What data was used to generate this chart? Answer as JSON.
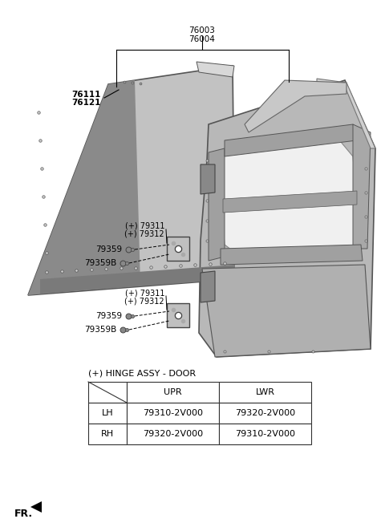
{
  "bg_color": "#ffffff",
  "fig_width": 4.8,
  "fig_height": 6.57,
  "labels": {
    "top_part": [
      "76003",
      "76004"
    ],
    "left_part": [
      "76111",
      "76121"
    ],
    "upper_hinge": [
      "(+) 79311",
      "(+) 79312"
    ],
    "lower_hinge": [
      "(+) 79311",
      "(+) 79312"
    ],
    "bolt_upper": "79359",
    "boltb_upper": "79359B",
    "bolt_lower": "79359",
    "boltb_lower": "79359B"
  },
  "table_title": "(+) HINGE ASSY - DOOR",
  "table_header": [
    "",
    "UPR",
    "LWR"
  ],
  "table_rows": [
    [
      "LH",
      "79310-2V000",
      "79320-2V000"
    ],
    [
      "RH",
      "79320-2V000",
      "79310-2V000"
    ]
  ],
  "fr_label": "FR.",
  "line_color": "#000000",
  "text_color": "#000000",
  "panel_face": "#c0c0c0",
  "panel_dark": "#909090",
  "panel_edge": "#555555",
  "frame_face": "#b5b5b5",
  "frame_edge": "#555555"
}
